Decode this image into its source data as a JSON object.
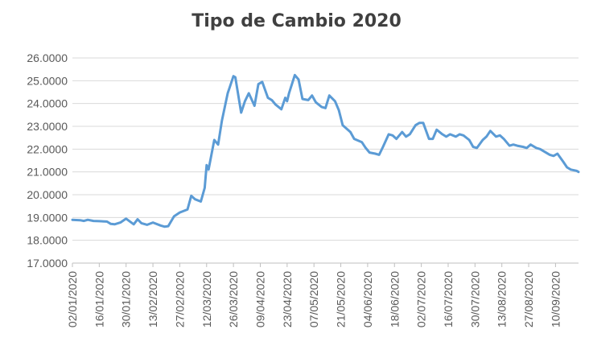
{
  "chart_data": {
    "type": "line",
    "title": "Tipo de Cambio 2020",
    "xlabel": "",
    "ylabel": "",
    "ylim": [
      17,
      26
    ],
    "y_ticks": [
      "17.0000",
      "18.0000",
      "19.0000",
      "20.0000",
      "21.0000",
      "22.0000",
      "23.0000",
      "24.0000",
      "25.0000",
      "26.0000"
    ],
    "x_tick_labels": [
      "02/01/2020",
      "16/01/2020",
      "30/01/2020",
      "13/02/2020",
      "27/02/2020",
      "12/03/2020",
      "26/03/2020",
      "09/04/2020",
      "23/04/2020",
      "07/05/2020",
      "21/05/2020",
      "04/06/2020",
      "18/06/2020",
      "02/07/2020",
      "16/07/2020",
      "30/07/2020",
      "13/08/2020",
      "27/08/2020",
      "10/09/2020"
    ],
    "grid": "horizontal",
    "legend": "none",
    "line_color": "#5b9bd5",
    "series": [
      {
        "x": [
          "02/01/2020",
          "06/01/2020",
          "08/01/2020",
          "10/01/2020",
          "13/01/2020",
          "16/01/2020",
          "20/01/2020",
          "22/01/2020",
          "24/01/2020",
          "27/01/2020",
          "30/01/2020",
          "03/02/2020",
          "05/02/2020",
          "07/02/2020",
          "10/02/2020",
          "13/02/2020",
          "17/02/2020",
          "19/02/2020",
          "21/02/2020",
          "24/02/2020",
          "27/02/2020",
          "02/03/2020",
          "04/03/2020",
          "06/03/2020",
          "09/03/2020",
          "11/03/2020",
          "12/03/2020",
          "13/03/2020",
          "16/03/2020",
          "18/03/2020",
          "20/03/2020",
          "23/03/2020",
          "24/03/2020",
          "26/03/2020",
          "27/03/2020",
          "30/03/2020",
          "01/04/2020",
          "03/04/2020",
          "06/04/2020",
          "08/04/2020",
          "10/04/2020",
          "13/04/2020",
          "15/04/2020",
          "17/04/2020",
          "20/04/2020",
          "22/04/2020",
          "23/04/2020",
          "24/04/2020",
          "27/04/2020",
          "29/04/2020",
          "01/05/2020",
          "04/05/2020",
          "06/05/2020",
          "08/05/2020",
          "11/05/2020",
          "13/05/2020",
          "15/05/2020",
          "18/05/2020",
          "20/05/2020",
          "22/05/2020",
          "26/05/2020",
          "28/05/2020",
          "01/06/2020",
          "03/06/2020",
          "05/06/2020",
          "08/06/2020",
          "10/06/2020",
          "12/06/2020",
          "15/06/2020",
          "17/06/2020",
          "19/06/2020",
          "22/06/2020",
          "24/06/2020",
          "26/06/2020",
          "29/06/2020",
          "01/07/2020",
          "03/07/2020",
          "06/07/2020",
          "08/07/2020",
          "10/07/2020",
          "13/07/2020",
          "15/07/2020",
          "17/07/2020",
          "20/07/2020",
          "22/07/2020",
          "24/07/2020",
          "27/07/2020",
          "29/07/2020",
          "31/07/2020",
          "03/08/2020",
          "05/08/2020",
          "07/08/2020",
          "10/08/2020",
          "12/08/2020",
          "14/08/2020",
          "17/08/2020",
          "19/08/2020",
          "21/08/2020",
          "24/08/2020",
          "26/08/2020",
          "28/08/2020",
          "31/08/2020",
          "02/09/2020",
          "04/09/2020",
          "07/09/2020",
          "09/09/2020",
          "11/09/2020",
          "14/09/2020",
          "16/09/2020",
          "18/09/2020",
          "21/09/2020",
          "22/09/2020"
        ],
        "values": [
          18.9,
          18.88,
          18.85,
          18.9,
          18.85,
          18.84,
          18.82,
          18.72,
          18.7,
          18.78,
          18.95,
          18.7,
          18.92,
          18.75,
          18.68,
          18.78,
          18.65,
          18.6,
          18.62,
          19.05,
          19.22,
          19.35,
          19.95,
          19.8,
          19.7,
          20.3,
          21.3,
          21.1,
          22.4,
          22.2,
          23.25,
          24.45,
          24.7,
          25.2,
          25.15,
          23.6,
          24.1,
          24.45,
          23.9,
          24.85,
          24.95,
          24.25,
          24.15,
          23.95,
          23.75,
          24.25,
          24.1,
          24.45,
          25.25,
          25.05,
          24.2,
          24.15,
          24.35,
          24.05,
          23.85,
          23.8,
          24.35,
          24.1,
          23.7,
          23.05,
          22.75,
          22.45,
          22.3,
          22.05,
          21.85,
          21.8,
          21.75,
          22.1,
          22.65,
          22.6,
          22.45,
          22.75,
          22.55,
          22.65,
          23.05,
          23.15,
          23.15,
          22.45,
          22.45,
          22.85,
          22.65,
          22.55,
          22.65,
          22.55,
          22.65,
          22.6,
          22.4,
          22.1,
          22.05,
          22.4,
          22.55,
          22.8,
          22.55,
          22.6,
          22.45,
          22.15,
          22.2,
          22.15,
          22.1,
          22.05,
          22.2,
          22.05,
          22.0,
          21.9,
          21.75,
          21.7,
          21.8,
          21.45,
          21.2,
          21.1,
          21.05,
          21.0
        ]
      }
    ]
  }
}
